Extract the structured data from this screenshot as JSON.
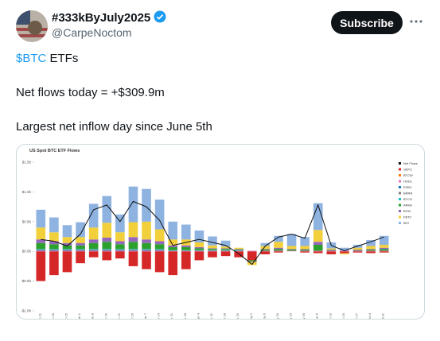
{
  "post": {
    "author": {
      "name": "#333kByJuly2025",
      "handle": "@CarpeNoctom"
    },
    "subscribe": "Subscribe",
    "line1": {
      "cashtag": "$BTC",
      "text": "ETFs"
    },
    "line2": "Net flows today = +$309.9m",
    "line3": "Largest net inflow day since June 5th"
  },
  "chart_data": {
    "type": "stacked_bar_line",
    "title": "US Spot BTC ETF Flows",
    "categories": [
      "Jan 11",
      "Jan 18",
      "Jan 25",
      "Feb 1",
      "Feb 8",
      "Feb 15",
      "Feb 22",
      "Feb 29",
      "Mar 7",
      "Mar 14",
      "Mar 21",
      "Mar 28",
      "Apr 4",
      "Apr 11",
      "Apr 18",
      "Apr 25",
      "May 2",
      "May 9",
      "May 16",
      "May 23",
      "May 30",
      "Jun 6",
      "Jun 13",
      "Jun 20",
      "Jun 27",
      "Jul 4",
      "Jul 11"
    ],
    "ylim": [
      -1.0,
      1.5
    ],
    "yticks": [
      {
        "value": 1.5,
        "label": "$1.5b"
      },
      {
        "value": 1.0,
        "label": "$1.0b"
      },
      {
        "value": 0.5,
        "label": "$0.5b"
      },
      {
        "value": 0.0,
        "label": "$0.0b"
      },
      {
        "value": -0.5,
        "label": "-$0.5b"
      },
      {
        "value": -1.0,
        "label": "-$1.0b"
      }
    ],
    "grid": false,
    "net_flows": {
      "name": "Net Flows",
      "color": "#111111",
      "values": [
        0.2,
        0.17,
        0.09,
        0.29,
        0.7,
        0.78,
        0.5,
        0.84,
        0.75,
        0.52,
        0.1,
        0.15,
        0.2,
        0.15,
        0.1,
        -0.04,
        -0.22,
        0.09,
        0.24,
        0.29,
        0.22,
        0.78,
        0.1,
        0.01,
        0.09,
        0.16,
        0.24
      ]
    },
    "series": [
      {
        "name": "GBTC",
        "color": "#d62728",
        "values": [
          -0.5,
          -0.4,
          -0.35,
          -0.2,
          -0.1,
          -0.15,
          -0.12,
          -0.25,
          -0.3,
          -0.35,
          -0.4,
          -0.3,
          -0.15,
          -0.1,
          -0.08,
          -0.1,
          -0.15,
          -0.05,
          -0.02,
          0,
          -0.02,
          -0.03,
          -0.05,
          -0.03,
          -0.02,
          -0.03,
          -0.02
        ]
      },
      {
        "name": "BTCW",
        "color": "#ff7f0e",
        "values": [
          0,
          0,
          0,
          0,
          0,
          0,
          0,
          0,
          0,
          0,
          0,
          0,
          0,
          0,
          0,
          0,
          0,
          0,
          0,
          0,
          0,
          0,
          0,
          0,
          0,
          0,
          0
        ]
      },
      {
        "name": "HODL",
        "color": "#e377c2",
        "values": [
          0.01,
          0.01,
          0.01,
          0.01,
          0.01,
          0.01,
          0.01,
          0.01,
          0.01,
          0.01,
          0.01,
          0.01,
          0.01,
          0.01,
          0.01,
          0.01,
          0.01,
          0.01,
          0.01,
          0.01,
          0.01,
          0.01,
          0.01,
          0.01,
          0.01,
          0.01,
          0.01
        ]
      },
      {
        "name": "EZBC",
        "color": "#1f77b4",
        "values": [
          0.01,
          0.01,
          0.01,
          0.01,
          0.01,
          0.01,
          0.01,
          0.01,
          0.01,
          0.01,
          0,
          0,
          0,
          0,
          0,
          0,
          0,
          0,
          0,
          0,
          0,
          0,
          0,
          0,
          0,
          0,
          0
        ]
      },
      {
        "name": "BRRR",
        "color": "#7f7f7f",
        "values": [
          0.01,
          0.01,
          0.01,
          0.01,
          0.01,
          0.01,
          0.01,
          0.01,
          0.01,
          0.01,
          0,
          0,
          0,
          0,
          0,
          0,
          0,
          0,
          0,
          0,
          0,
          0,
          0,
          0,
          0,
          0,
          0
        ]
      },
      {
        "name": "BTCO",
        "color": "#17becf",
        "values": [
          0.01,
          0.01,
          0.01,
          0.01,
          0.01,
          0.01,
          0.01,
          0.01,
          0.01,
          0.01,
          0.01,
          0.01,
          0.01,
          0.01,
          0.01,
          0.01,
          0,
          0,
          0,
          0,
          0,
          0,
          0,
          0,
          0,
          0,
          0
        ]
      },
      {
        "name": "ARKB",
        "color": "#2ca02c",
        "values": [
          0.1,
          0.08,
          0.06,
          0.06,
          0.1,
          0.12,
          0.08,
          0.12,
          0.1,
          0.08,
          0.05,
          0.05,
          0.03,
          0.02,
          0.02,
          0.01,
          -0.02,
          0.02,
          0.03,
          0.02,
          0.02,
          0.1,
          0.01,
          0,
          0.01,
          0.02,
          0.03
        ]
      },
      {
        "name": "BITB",
        "color": "#9467bd",
        "values": [
          0.06,
          0.05,
          0.04,
          0.04,
          0.06,
          0.07,
          0.05,
          0.08,
          0.06,
          0.05,
          0.03,
          0.03,
          0.02,
          0.01,
          0.01,
          0.01,
          -0.01,
          0.01,
          0.02,
          0.01,
          0.01,
          0.05,
          0.01,
          0,
          0.01,
          0.01,
          0.02
        ]
      },
      {
        "name": "FBTC",
        "color": "#f2d03b",
        "values": [
          0.2,
          0.15,
          0.1,
          0.1,
          0.2,
          0.25,
          0.15,
          0.25,
          0.3,
          0.2,
          0.1,
          0.1,
          0.08,
          0.05,
          0.03,
          0.02,
          -0.05,
          0.05,
          0.1,
          0.05,
          0.05,
          0.2,
          0.02,
          -0.02,
          0.03,
          0.05,
          0.05
        ]
      },
      {
        "name": "IBIT",
        "color": "#8fb3e0",
        "values": [
          0.3,
          0.25,
          0.2,
          0.25,
          0.4,
          0.45,
          0.3,
          0.6,
          0.55,
          0.5,
          0.3,
          0.25,
          0.2,
          0.15,
          0.1,
          0,
          0,
          0.05,
          0.1,
          0.2,
          0.15,
          0.45,
          0.1,
          0.05,
          0.05,
          0.1,
          0.15
        ]
      }
    ]
  }
}
